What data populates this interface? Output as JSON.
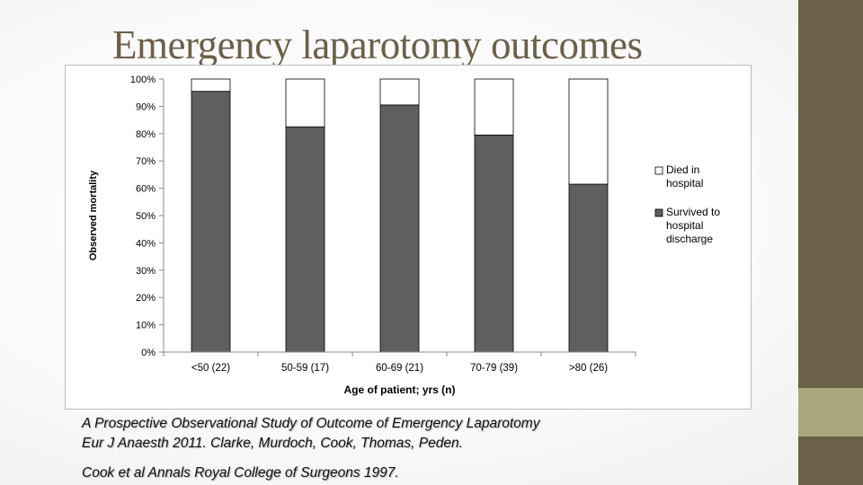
{
  "slide": {
    "title": "Emergency laparotomy outcomes",
    "citations": [
      "A Prospective Observational Study of Outcome of Emergency Laparotomy",
      "Eur J Anaesth 2011.  Clarke, Murdoch, Cook, Thomas, Peden.",
      "Cook et al  Annals Royal College of Surgeons 1997."
    ],
    "colors": {
      "sidebar": "#6b604a",
      "sidebar_accent": "#aaa77c",
      "title": "#6b604a"
    }
  },
  "chart_data": {
    "type": "bar",
    "stacked": true,
    "categories": [
      "<50 (22)",
      "50-59 (17)",
      "60-69 (21)",
      "70-79 (39)",
      ">80 (26)"
    ],
    "series": [
      {
        "name": "Survived to hospital discharge",
        "legend_lines": [
          "Survived to",
          "hospital",
          "discharge"
        ],
        "color": "#5f5f5f",
        "values": [
          95.5,
          82.5,
          90.5,
          79.5,
          61.5
        ]
      },
      {
        "name": "Died in hospital",
        "legend_lines": [
          "Died in",
          "hospital"
        ],
        "color": "#ffffff",
        "values": [
          4.5,
          17.5,
          9.5,
          20.5,
          38.5
        ]
      }
    ],
    "y_ticks": [
      "0%",
      "10%",
      "20%",
      "30%",
      "40%",
      "50%",
      "60%",
      "70%",
      "80%",
      "90%",
      "100%"
    ],
    "ylim": [
      0,
      100
    ],
    "xlabel": "Age of patient; yrs (n)",
    "ylabel": "Observed mortality",
    "grid": false,
    "legend": "right"
  }
}
